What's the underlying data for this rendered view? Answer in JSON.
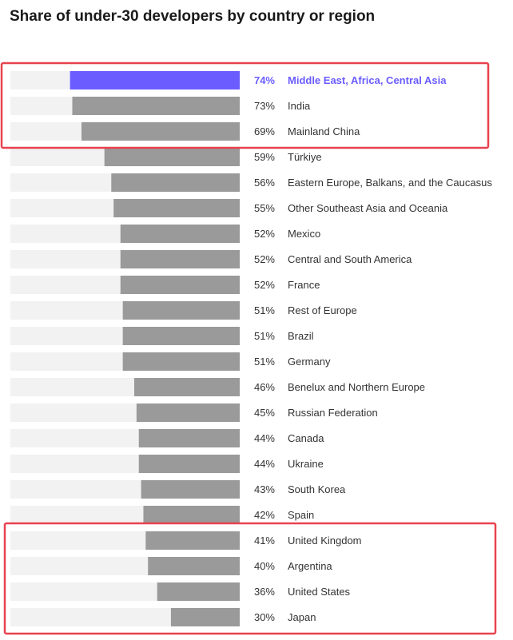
{
  "chart_data": {
    "type": "bar",
    "orientation": "horizontal",
    "title": "Share of under-30 developers by country or region",
    "ylim": [
      0,
      100
    ],
    "value_format": "percent",
    "categories": [
      "Middle East, Africa, Central Asia",
      "India",
      "Mainland China",
      "Türkiye",
      "Eastern Europe, Balkans, and the Caucasus",
      "Other Southeast Asia and Oceania",
      "Mexico",
      "Central and South America",
      "France",
      "Rest of Europe",
      "Brazil",
      "Germany",
      "Benelux and Northern Europe",
      "Russian Federation",
      "Canada",
      "Ukraine",
      "South Korea",
      "Spain",
      "United Kingdom",
      "Argentina",
      "United States",
      "Japan"
    ],
    "values": [
      74,
      73,
      69,
      59,
      56,
      55,
      52,
      52,
      52,
      51,
      51,
      51,
      46,
      45,
      44,
      44,
      43,
      42,
      41,
      40,
      36,
      30
    ],
    "labels": [
      "74%",
      "73%",
      "69%",
      "59%",
      "56%",
      "55%",
      "52%",
      "52%",
      "52%",
      "51%",
      "51%",
      "51%",
      "46%",
      "45%",
      "44%",
      "44%",
      "43%",
      "42%",
      "41%",
      "40%",
      "36%",
      "30%"
    ],
    "highlighted_index": 0,
    "highlight_boxes": [
      {
        "from_index": 0,
        "to_index": 2
      },
      {
        "from_index": 18,
        "to_index": 21
      }
    ],
    "colors": {
      "highlight": "#6b5cff",
      "bar": "#9a9a9a",
      "track": "#f2f2f2",
      "box": "#e8424f"
    }
  }
}
